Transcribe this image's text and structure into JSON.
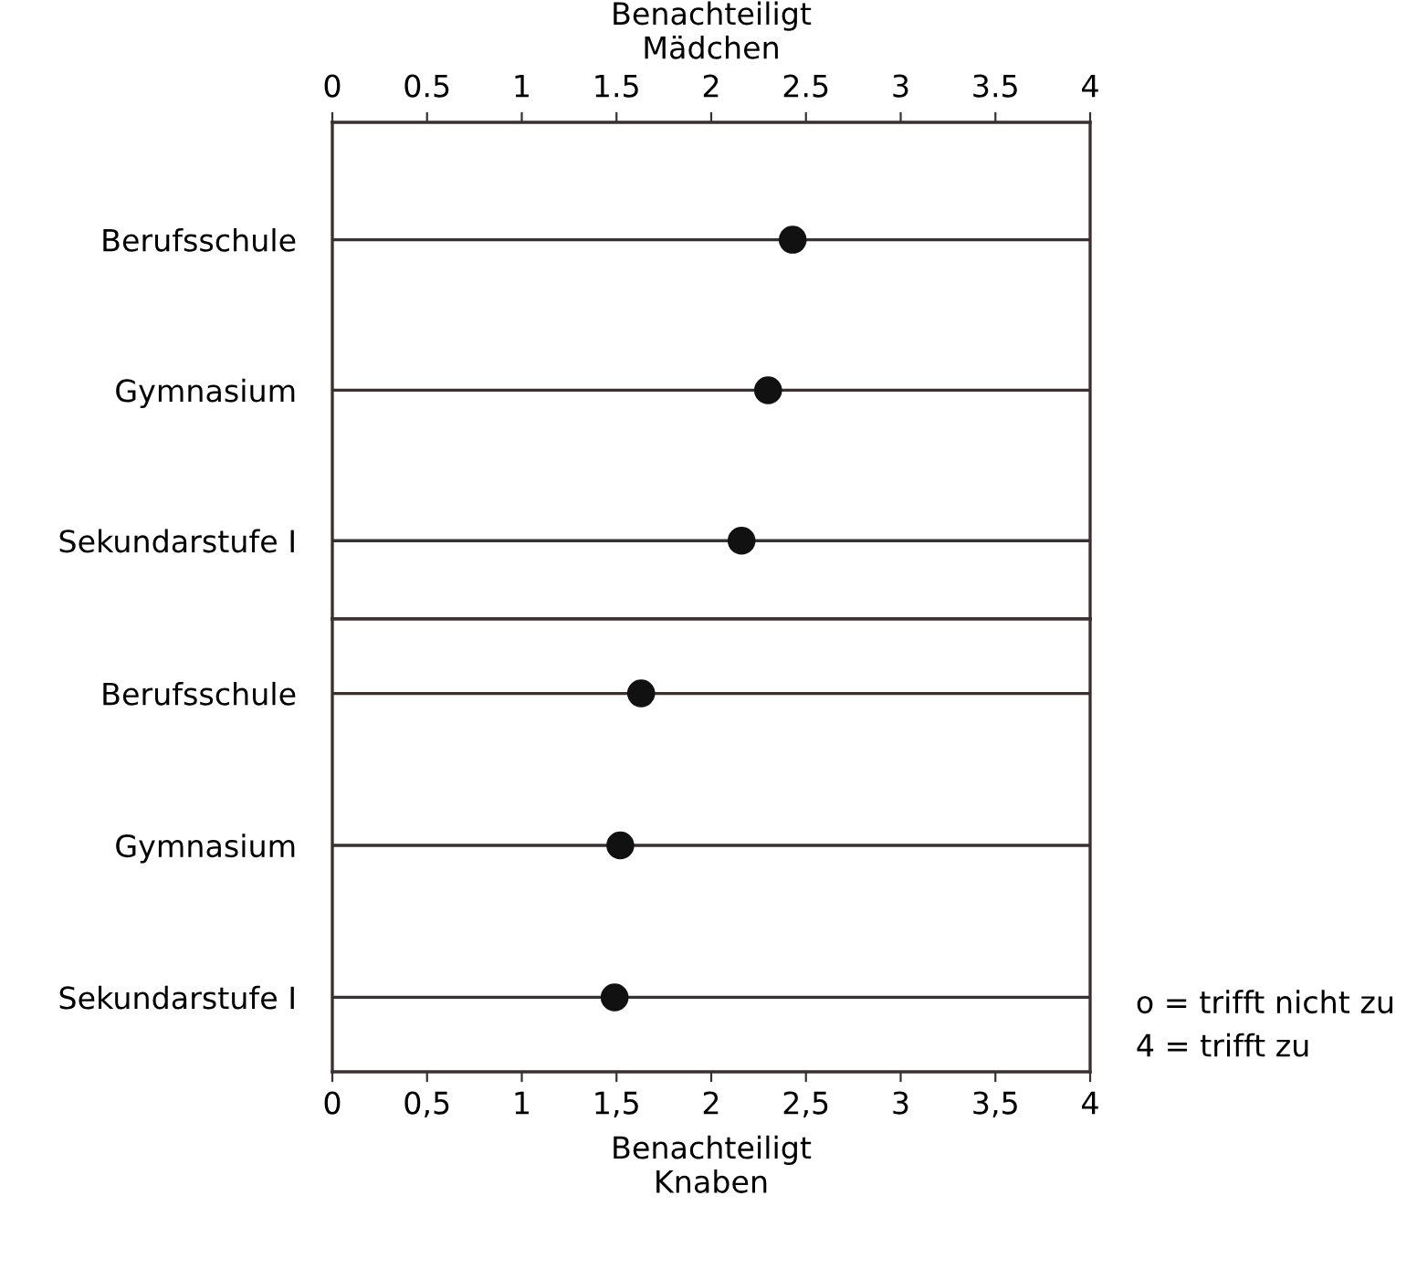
{
  "chart_data": [
    {
      "type": "scatter",
      "orientation": "horizontal",
      "x2label": "Benachteiligt\nMädchen",
      "categories": [
        "Berufsschule",
        "Gymnasium",
        "Sekundarstufe I"
      ],
      "series": [
        {
          "color": "#111111",
          "axis": "x2",
          "values": [
            2.43,
            2.3,
            2.16
          ]
        }
      ],
      "x2lim": [
        0,
        4
      ],
      "x2ticks": [
        0,
        {
          "value": 0.5,
          "label": "0.5"
        },
        1,
        {
          "value": 1.5,
          "label": "1.5"
        },
        2,
        {
          "value": 2.5,
          "label": "2.5"
        },
        3,
        {
          "value": 3.5,
          "label": "3.5"
        },
        4
      ],
      "grid": "y",
      "marker": "circle"
    },
    {
      "type": "scatter",
      "orientation": "horizontal",
      "xlabel": "Benachteiligt\nKnaben",
      "categories": [
        "Berufsschule",
        "Gymnasium",
        "Sekundarstufe I"
      ],
      "series": [
        {
          "color": "#111111",
          "values": [
            1.63,
            1.52,
            1.49
          ]
        }
      ],
      "xlim": [
        0,
        4
      ],
      "xticks": [
        0,
        {
          "value": 0.5,
          "label": "0,5"
        },
        1,
        {
          "value": 1.5,
          "label": "1,5"
        },
        2,
        {
          "value": 2.5,
          "label": "2,5"
        },
        3,
        {
          "value": 3.5,
          "label": "3,5"
        },
        4
      ],
      "grid": "y",
      "marker": "circle",
      "annotations": [
        "o = trifft nicht zu\n4 = trifft zu"
      ]
    }
  ]
}
